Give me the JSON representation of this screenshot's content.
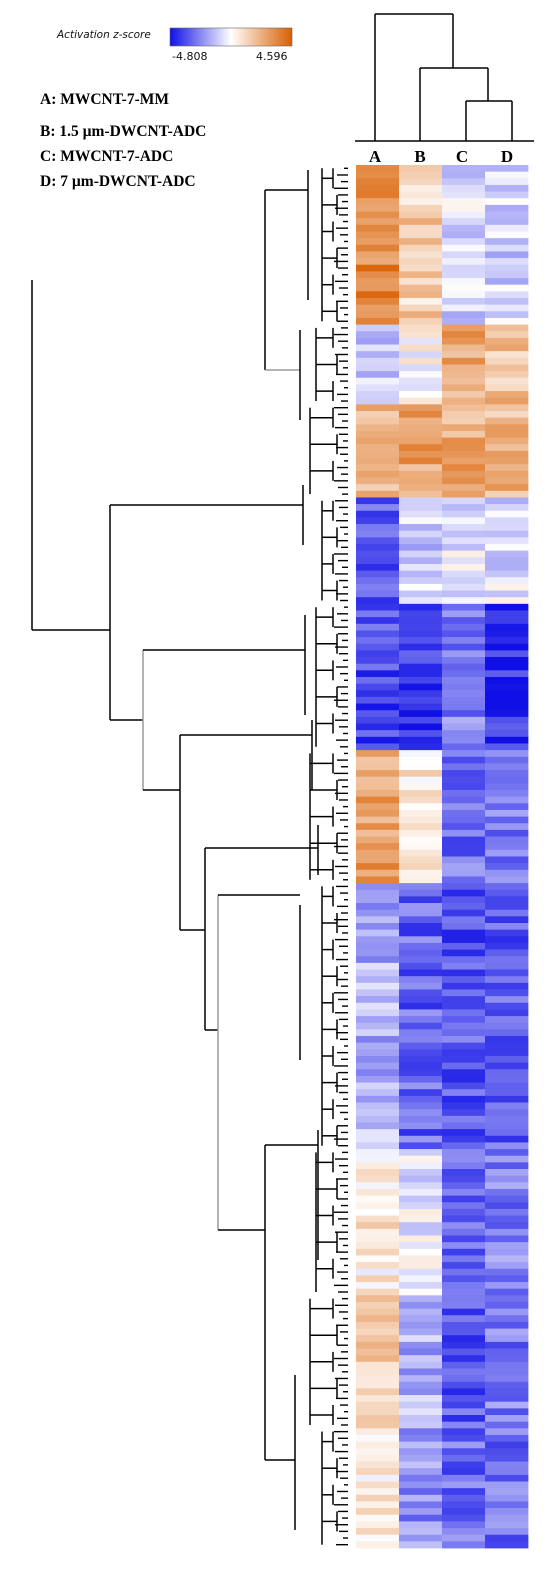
{
  "legend": {
    "title": "Activation z-score",
    "min_label": "-4.808",
    "max_label": "4.596",
    "min": -4.808,
    "max": 4.596,
    "colors": {
      "low": "#1010e6",
      "mid": "#ffffff",
      "high": "#d95f00"
    }
  },
  "samples": [
    {
      "key": "A",
      "text": "A: MWCNT-7-MM"
    },
    {
      "key": "B",
      "text": "B: 1.5 µm-DWCNT-ADC"
    },
    {
      "key": "C",
      "text": "C: MWCNT-7-ADC"
    },
    {
      "key": "D",
      "text": "D: 7 µm-DWCNT-ADC"
    }
  ],
  "chart_data": {
    "type": "heatmap",
    "columns": [
      "A",
      "B",
      "C",
      "D"
    ],
    "column_dendrogram": "(A,(B,(C,D)))",
    "row_dendrogram": true,
    "value_range": [
      -4.808,
      4.596
    ],
    "row_blocks": [
      {
        "rows": 24,
        "values": [
          3.4,
          1.4,
          -0.7,
          -1.0
        ],
        "pattern": "strong-A"
      },
      {
        "rows": 12,
        "values": [
          -0.9,
          0.2,
          2.6,
          1.9
        ],
        "pattern": "C-D-up"
      },
      {
        "rows": 14,
        "values": [
          2.3,
          2.6,
          2.4,
          2.0
        ],
        "pattern": "all-up"
      },
      {
        "rows": 16,
        "values": [
          -3.4,
          -1.0,
          -0.4,
          -0.6
        ],
        "pattern": "A-down"
      },
      {
        "rows": 22,
        "values": [
          -3.6,
          -4.0,
          -2.6,
          -4.3
        ],
        "pattern": "all-down-strong"
      },
      {
        "rows": 20,
        "values": [
          2.7,
          0.6,
          -2.8,
          -2.6
        ],
        "pattern": "A-up-C-D-down"
      },
      {
        "rows": 40,
        "values": [
          -1.6,
          -3.1,
          -3.4,
          -3.2
        ],
        "pattern": "all-down"
      },
      {
        "rows": 22,
        "values": [
          0.6,
          -0.4,
          -3.0,
          -2.5
        ],
        "pattern": "C-D-down"
      },
      {
        "rows": 20,
        "values": [
          1.2,
          -1.6,
          -3.3,
          -2.7
        ],
        "pattern": "A-up-rest-down"
      },
      {
        "rows": 18,
        "values": [
          0.5,
          -2.2,
          -3.0,
          -2.8
        ],
        "pattern": "mixed-down"
      }
    ]
  }
}
